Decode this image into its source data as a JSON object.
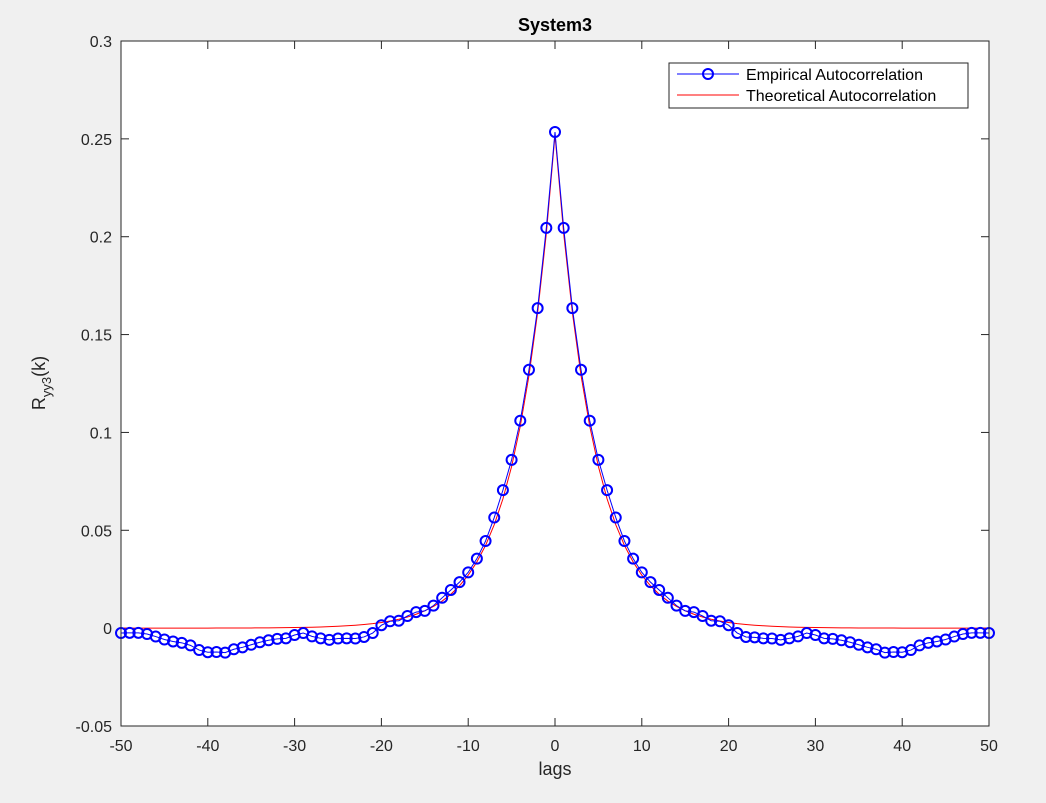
{
  "chart_data": {
    "type": "line",
    "title": "System3",
    "xlabel": "lags",
    "ylabel": {
      "main": "R",
      "subscript": "yy3",
      "suffix": "(k)"
    },
    "xlim": [
      -50,
      50
    ],
    "ylim": [
      -0.05,
      0.3
    ],
    "xticks": [
      -50,
      -40,
      -30,
      -20,
      -10,
      0,
      10,
      20,
      30,
      40,
      50
    ],
    "xtick_labels": [
      "-50",
      "-40",
      "-30",
      "-20",
      "-10",
      "0",
      "10",
      "20",
      "30",
      "40",
      "50"
    ],
    "yticks": [
      -0.05,
      0,
      0.05,
      0.1,
      0.15,
      0.2,
      0.25,
      0.3
    ],
    "ytick_labels": [
      "-0.05",
      "0",
      "0.05",
      "0.1",
      "0.15",
      "0.2",
      "0.25",
      "0.3"
    ],
    "grid": false,
    "legend_position": "top-right",
    "x": [
      -50,
      -49,
      -48,
      -47,
      -46,
      -45,
      -44,
      -43,
      -42,
      -41,
      -40,
      -39,
      -38,
      -37,
      -36,
      -35,
      -34,
      -33,
      -32,
      -31,
      -30,
      -29,
      -28,
      -27,
      -26,
      -25,
      -24,
      -23,
      -22,
      -21,
      -20,
      -19,
      -18,
      -17,
      -16,
      -15,
      -14,
      -13,
      -12,
      -11,
      -10,
      -9,
      -8,
      -7,
      -6,
      -5,
      -4,
      -3,
      -2,
      -1,
      0,
      1,
      2,
      3,
      4,
      5,
      6,
      7,
      8,
      9,
      10,
      11,
      12,
      13,
      14,
      15,
      16,
      17,
      18,
      19,
      20,
      21,
      22,
      23,
      24,
      25,
      26,
      27,
      28,
      29,
      30,
      31,
      32,
      33,
      34,
      35,
      36,
      37,
      38,
      39,
      40,
      41,
      42,
      43,
      44,
      45,
      46,
      47,
      48,
      49,
      50
    ],
    "series": [
      {
        "name": "Empirical Autocorrelation",
        "color": "#0000ff",
        "marker": "circle",
        "values": [
          -0.0025,
          -0.0024,
          -0.0024,
          -0.003,
          -0.0043,
          -0.0058,
          -0.0068,
          -0.0075,
          -0.0088,
          -0.0112,
          -0.0123,
          -0.0122,
          -0.0125,
          -0.0108,
          -0.0098,
          -0.0085,
          -0.0072,
          -0.0062,
          -0.0055,
          -0.0052,
          -0.0035,
          -0.0025,
          -0.0042,
          -0.0052,
          -0.006,
          -0.0053,
          -0.0052,
          -0.0053,
          -0.0045,
          -0.0025,
          0.0015,
          0.0035,
          0.0038,
          0.0062,
          0.0082,
          0.0088,
          0.0115,
          0.0155,
          0.0195,
          0.0235,
          0.0285,
          0.0355,
          0.0445,
          0.0565,
          0.0705,
          0.086,
          0.106,
          0.132,
          0.1635,
          0.2045,
          0.2535,
          0.2045,
          0.1635,
          0.132,
          0.106,
          0.086,
          0.0705,
          0.0565,
          0.0445,
          0.0355,
          0.0285,
          0.0235,
          0.0195,
          0.0155,
          0.0115,
          0.0088,
          0.0082,
          0.0062,
          0.0038,
          0.0035,
          0.0015,
          -0.0025,
          -0.0045,
          -0.0047,
          -0.0052,
          -0.0053,
          -0.006,
          -0.0052,
          -0.0042,
          -0.0025,
          -0.0035,
          -0.0052,
          -0.0055,
          -0.0062,
          -0.0072,
          -0.0085,
          -0.0098,
          -0.0108,
          -0.0125,
          -0.0122,
          -0.0123,
          -0.0112,
          -0.0088,
          -0.0075,
          -0.0068,
          -0.0058,
          -0.0043,
          -0.003,
          -0.0024,
          -0.0024,
          -0.0025
        ]
      },
      {
        "name": "Theoretical Autocorrelation",
        "color": "#ff0000",
        "marker": "none",
        "peak": 0.252,
        "decay": 0.8
      }
    ]
  }
}
